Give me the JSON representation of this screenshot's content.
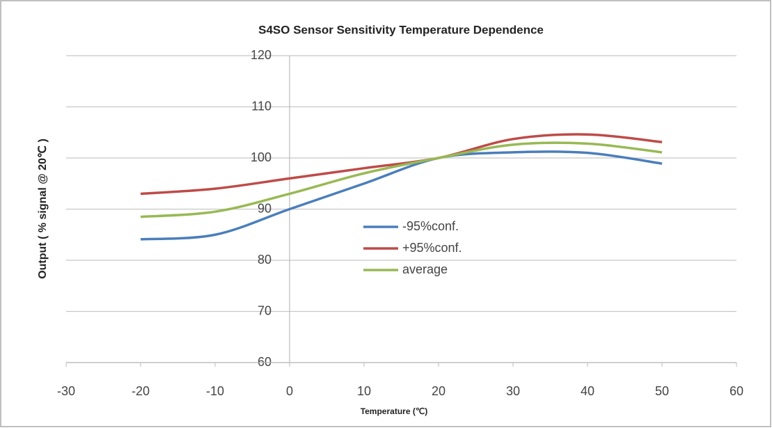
{
  "chart_data": {
    "type": "line",
    "title": "S4SO Sensor Sensitivity Temperature Dependence",
    "x_label": "Temperature (℃)",
    "y_label": "Output ( % signal  @ 20℃ )",
    "x": [
      -20,
      -10,
      0,
      10,
      20,
      30,
      40,
      50
    ],
    "series": [
      {
        "name": "-95%conf.",
        "color": "#4a7ebb",
        "values": [
          84.1,
          85,
          90,
          95,
          100,
          101.1,
          101,
          98.9
        ]
      },
      {
        "name": "+95%conf.",
        "color": "#be4b48",
        "values": [
          93,
          94,
          96,
          98,
          100,
          103.7,
          104.6,
          103.1
        ]
      },
      {
        "name": "average",
        "color": "#98b954",
        "values": [
          88.5,
          89.5,
          93,
          97,
          100,
          102.6,
          102.8,
          101.1
        ]
      }
    ],
    "xlim": [
      -30,
      60
    ],
    "xticks": [
      -30,
      -20,
      -10,
      0,
      10,
      20,
      30,
      40,
      50,
      60
    ],
    "ylim": [
      60,
      120
    ],
    "yticks": [
      60,
      70,
      80,
      90,
      100,
      110,
      120
    ],
    "grid": true,
    "smooth": true
  }
}
